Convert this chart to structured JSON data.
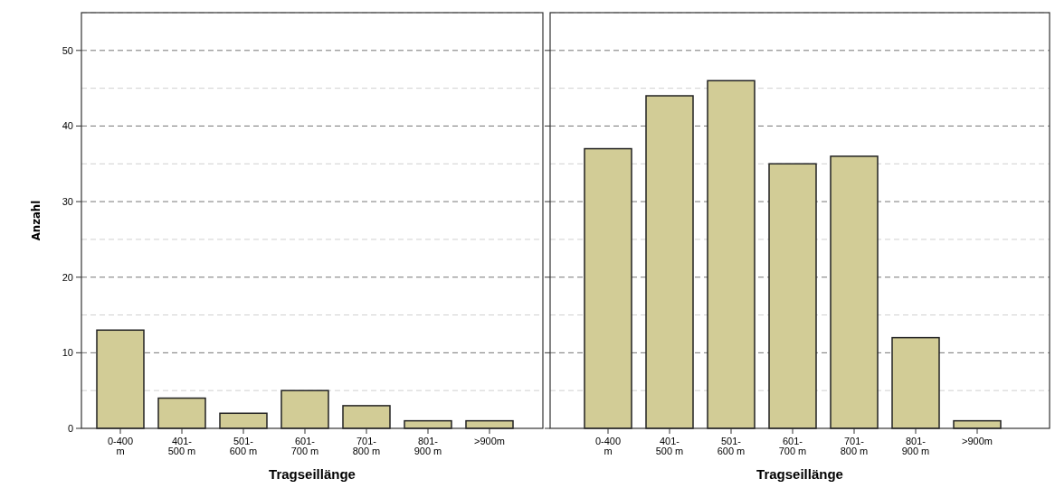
{
  "chart_data": [
    {
      "type": "bar",
      "categories": [
        "0-400 m",
        "401- 500 m",
        "501- 600 m",
        "601- 700 m",
        "701- 800 m",
        "801- 900 m",
        ">900m"
      ],
      "values": [
        13,
        4,
        2,
        5,
        3,
        1,
        1
      ],
      "color": "#d2cc96",
      "xlabel": "Tragseillänge",
      "ylabel": "Anzahl",
      "ylim": [
        0,
        55
      ],
      "yticks": [
        0,
        {
          "value": 5,
          "label": null
        },
        10,
        {
          "value": 15,
          "label": null
        },
        20,
        {
          "value": 25,
          "label": null
        },
        30,
        {
          "value": 35,
          "label": null
        },
        40,
        {
          "value": 45,
          "label": null
        },
        50,
        {
          "value": 55,
          "label": null
        }
      ],
      "grid": "y"
    },
    {
      "type": "bar",
      "categories": [
        "0-400 m",
        "401- 500 m",
        "501- 600 m",
        "601- 700 m",
        "701- 800 m",
        "801- 900 m",
        ">900m"
      ],
      "values": [
        37,
        44,
        46,
        35,
        36,
        12,
        1
      ],
      "color": "#d2cc96",
      "xlabel": "Tragseillänge",
      "ylim": [
        0,
        55
      ],
      "yticks": [
        0,
        {
          "value": 5,
          "label": null
        },
        10,
        {
          "value": 15,
          "label": null
        },
        20,
        {
          "value": 25,
          "label": null
        },
        30,
        {
          "value": 35,
          "label": null
        },
        40,
        {
          "value": 45,
          "label": null
        },
        50,
        {
          "value": 55,
          "label": null
        }
      ],
      "grid": "y",
      "tick_labels": "x"
    }
  ]
}
